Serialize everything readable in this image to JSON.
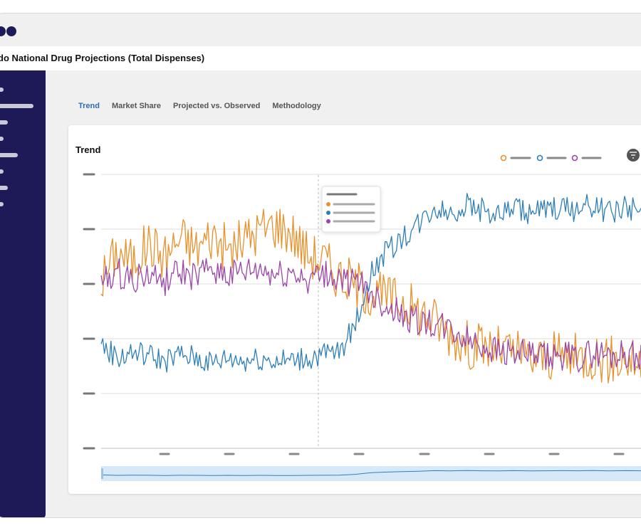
{
  "window": {
    "title": "do National Drug Projections (Total Dispenses)"
  },
  "tabs": [
    {
      "label": "Trend",
      "active": true
    },
    {
      "label": "Market Share",
      "active": false
    },
    {
      "label": "Projected vs. Observed",
      "active": false
    },
    {
      "label": "Methodology",
      "active": false
    }
  ],
  "card": {
    "title": "Trend",
    "filter_icon": "filter-icon"
  },
  "colors": {
    "sidebar": "#1d1a57",
    "accent": "#2d6fb0",
    "orange": "#e8912b",
    "blue": "#2e7fb8",
    "purple": "#9a46a8"
  },
  "chart_data": {
    "type": "line",
    "series": [
      {
        "color": "#e8912b",
        "values": [
          61,
          72,
          68,
          75,
          70,
          77,
          73,
          78,
          72,
          76,
          80,
          82,
          79,
          71,
          69,
          63,
          60,
          57,
          55,
          54,
          50,
          47,
          42,
          38,
          37,
          36,
          35,
          33,
          33,
          34,
          33,
          34,
          32,
          33,
          31
        ]
      },
      {
        "color": "#2e7fb8",
        "values": [
          38,
          33,
          35,
          34,
          32,
          34,
          33,
          31,
          33,
          32,
          33,
          32,
          32,
          33,
          34,
          35,
          45,
          64,
          72,
          77,
          82,
          88,
          86,
          89,
          87,
          85,
          88,
          86,
          87,
          88,
          87,
          89,
          86,
          88,
          87
        ]
      },
      {
        "color": "#9a46a8",
        "values": [
          60,
          64,
          62,
          63,
          61,
          64,
          62,
          66,
          63,
          64,
          65,
          63,
          64,
          62,
          63,
          62,
          60,
          57,
          52,
          48,
          46,
          45,
          43,
          40,
          38,
          36,
          35,
          34,
          33,
          34,
          33,
          35,
          34,
          35,
          33
        ]
      }
    ],
    "ylim": [
      0,
      100
    ],
    "grid": true
  }
}
